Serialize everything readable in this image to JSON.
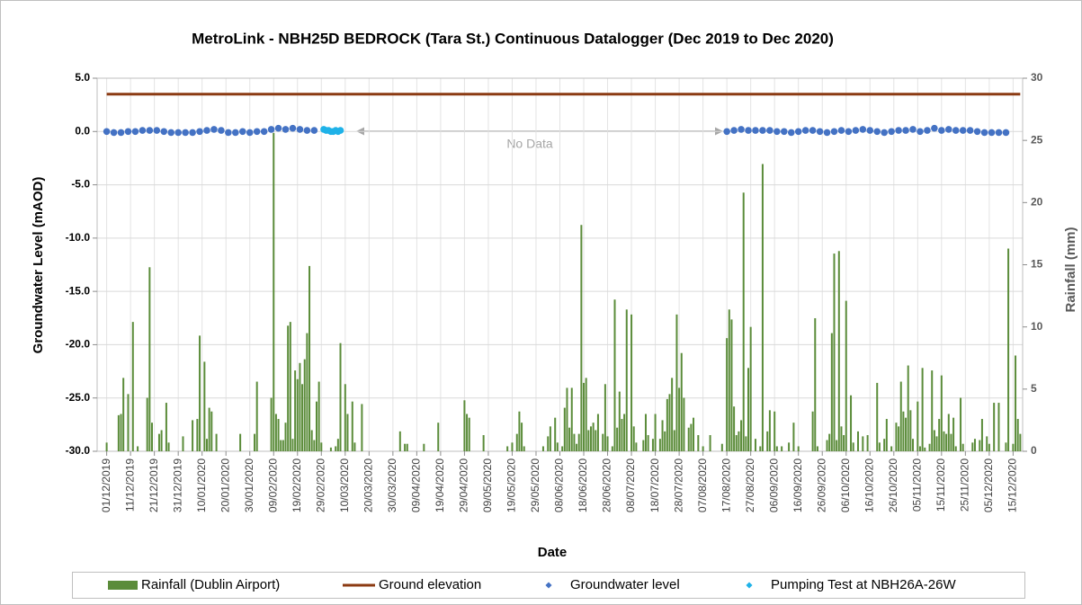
{
  "chart_data": {
    "type": "combo",
    "title": "MetroLink - NBH25D BEDROCK (Tara St.) Continuous Datalogger (Dec 2019 to Dec 2020)",
    "x_label": "Date",
    "y_label": "Groundwater Level (mAOD)",
    "y2_label": "Rainfall (mm)",
    "annotation": "No Data",
    "xlim": [
      "27/11/2019",
      "19/12/2020"
    ],
    "xticks": [
      "01/12/2019",
      "11/12/2019",
      "21/12/2019",
      "31/12/2019",
      "10/01/2020",
      "20/01/2020",
      "30/01/2020",
      "09/02/2020",
      "19/02/2020",
      "29/02/2020",
      "10/03/2020",
      "20/03/2020",
      "30/03/2020",
      "09/04/2020",
      "19/04/2020",
      "29/04/2020",
      "09/05/2020",
      "19/05/2020",
      "29/05/2020",
      "08/06/2020",
      "18/06/2020",
      "28/06/2020",
      "08/07/2020",
      "18/07/2020",
      "28/07/2020",
      "07/08/2020",
      "17/08/2020",
      "27/08/2020",
      "06/09/2020",
      "16/09/2020",
      "26/09/2020",
      "06/10/2020",
      "16/10/2020",
      "26/10/2020",
      "05/11/2020",
      "15/11/2020",
      "25/11/2020",
      "05/12/2020",
      "15/12/2020"
    ],
    "ylim": [
      -30,
      5
    ],
    "yticks": [
      {
        "value": -30,
        "label": "-30.0"
      },
      {
        "value": -25,
        "label": "-25.0"
      },
      {
        "value": -20,
        "label": "-20.0"
      },
      {
        "value": -15,
        "label": "-15.0"
      },
      {
        "value": -10,
        "label": "-10.0"
      },
      {
        "value": -5,
        "label": "-5.0"
      },
      {
        "value": 0,
        "label": "0.0"
      },
      {
        "value": 5,
        "label": "5.0"
      }
    ],
    "y2lim": [
      0,
      30
    ],
    "y2ticks": [
      0,
      5,
      10,
      15,
      20,
      25,
      30
    ],
    "grid": true,
    "legend": "bottom",
    "series": [
      {
        "name": "Rainfall (Dublin Airport)",
        "type": "bar",
        "axis": "y2",
        "color": "#5b8c3a",
        "x": [
          "01/12/2019",
          "06/12/2019",
          "07/12/2019",
          "08/12/2019",
          "10/12/2019",
          "12/12/2019",
          "14/12/2019",
          "18/12/2019",
          "19/12/2019",
          "20/12/2019",
          "23/12/2019",
          "24/12/2019",
          "26/12/2019",
          "27/12/2019",
          "02/01/2020",
          "06/01/2020",
          "08/01/2020",
          "09/01/2020",
          "11/01/2020",
          "12/01/2020",
          "13/01/2020",
          "14/01/2020",
          "16/01/2020",
          "26/01/2020",
          "01/02/2020",
          "02/02/2020",
          "08/02/2020",
          "09/02/2020",
          "10/02/2020",
          "11/02/2020",
          "12/02/2020",
          "13/02/2020",
          "14/02/2020",
          "15/02/2020",
          "16/02/2020",
          "17/02/2020",
          "18/02/2020",
          "19/02/2020",
          "20/02/2020",
          "21/02/2020",
          "22/02/2020",
          "23/02/2020",
          "24/02/2020",
          "25/02/2020",
          "26/02/2020",
          "27/02/2020",
          "28/02/2020",
          "29/02/2020",
          "04/03/2020",
          "06/03/2020",
          "07/03/2020",
          "08/03/2020",
          "10/03/2020",
          "11/03/2020",
          "13/03/2020",
          "14/03/2020",
          "17/03/2020",
          "02/04/2020",
          "04/04/2020",
          "05/04/2020",
          "12/04/2020",
          "18/04/2020",
          "29/04/2020",
          "30/04/2020",
          "01/05/2020",
          "07/05/2020",
          "17/05/2020",
          "19/05/2020",
          "21/05/2020",
          "22/05/2020",
          "23/05/2020",
          "24/05/2020",
          "01/06/2020",
          "03/06/2020",
          "04/06/2020",
          "06/06/2020",
          "07/06/2020",
          "09/06/2020",
          "10/06/2020",
          "11/06/2020",
          "12/06/2020",
          "13/06/2020",
          "14/06/2020",
          "15/06/2020",
          "16/06/2020",
          "17/06/2020",
          "18/06/2020",
          "19/06/2020",
          "20/06/2020",
          "21/06/2020",
          "22/06/2020",
          "23/06/2020",
          "24/06/2020",
          "26/06/2020",
          "27/06/2020",
          "28/06/2020",
          "30/06/2020",
          "01/07/2020",
          "02/07/2020",
          "03/07/2020",
          "04/07/2020",
          "05/07/2020",
          "06/07/2020",
          "08/07/2020",
          "09/07/2020",
          "10/07/2020",
          "13/07/2020",
          "14/07/2020",
          "15/07/2020",
          "17/07/2020",
          "18/07/2020",
          "20/07/2020",
          "21/07/2020",
          "22/07/2020",
          "23/07/2020",
          "24/07/2020",
          "25/07/2020",
          "26/07/2020",
          "27/07/2020",
          "28/07/2020",
          "29/07/2020",
          "30/07/2020",
          "01/08/2020",
          "02/08/2020",
          "03/08/2020",
          "05/08/2020",
          "07/08/2020",
          "10/08/2020",
          "15/08/2020",
          "17/08/2020",
          "18/08/2020",
          "19/08/2020",
          "20/08/2020",
          "21/08/2020",
          "22/08/2020",
          "23/08/2020",
          "24/08/2020",
          "25/08/2020",
          "26/08/2020",
          "27/08/2020",
          "29/08/2020",
          "31/08/2020",
          "01/09/2020",
          "03/09/2020",
          "04/09/2020",
          "06/09/2020",
          "07/09/2020",
          "09/09/2020",
          "12/09/2020",
          "14/09/2020",
          "16/09/2020",
          "22/09/2020",
          "23/09/2020",
          "24/09/2020",
          "28/09/2020",
          "29/09/2020",
          "30/09/2020",
          "01/10/2020",
          "02/10/2020",
          "03/10/2020",
          "04/10/2020",
          "05/10/2020",
          "06/10/2020",
          "08/10/2020",
          "09/10/2020",
          "11/10/2020",
          "13/10/2020",
          "15/10/2020",
          "19/10/2020",
          "20/10/2020",
          "22/10/2020",
          "23/10/2020",
          "25/10/2020",
          "27/10/2020",
          "28/10/2020",
          "29/10/2020",
          "30/10/2020",
          "31/10/2020",
          "01/11/2020",
          "02/11/2020",
          "03/11/2020",
          "05/11/2020",
          "06/11/2020",
          "07/11/2020",
          "08/11/2020",
          "10/11/2020",
          "11/11/2020",
          "12/11/2020",
          "13/11/2020",
          "14/11/2020",
          "15/11/2020",
          "16/11/2020",
          "17/11/2020",
          "18/11/2020",
          "19/11/2020",
          "20/11/2020",
          "21/11/2020",
          "23/11/2020",
          "24/11/2020",
          "28/11/2020",
          "29/11/2020",
          "01/12/2020",
          "02/12/2020",
          "04/12/2020",
          "05/12/2020",
          "07/12/2020",
          "09/12/2020",
          "12/12/2020",
          "13/12/2020",
          "15/12/2020",
          "16/12/2020",
          "17/12/2020",
          "18/12/2020"
        ],
        "values": [
          0.7,
          2.9,
          3.0,
          5.9,
          4.6,
          10.4,
          0.4,
          4.3,
          14.8,
          2.3,
          1.4,
          1.7,
          3.9,
          0.7,
          1.2,
          2.5,
          2.6,
          9.3,
          7.2,
          1.0,
          3.5,
          3.2,
          1.4,
          1.4,
          1.4,
          5.6,
          4.3,
          25.6,
          3.0,
          2.6,
          0.9,
          0.9,
          2.3,
          10.1,
          10.4,
          1.0,
          6.5,
          5.8,
          7.1,
          5.4,
          7.4,
          9.5,
          14.9,
          1.7,
          0.9,
          4.0,
          5.6,
          0.7,
          0.3,
          0.4,
          1.0,
          8.7,
          5.4,
          3.0,
          4.0,
          0.7,
          3.8,
          1.6,
          0.6,
          0.6,
          0.6,
          2.3,
          4.1,
          3.0,
          2.7,
          1.3,
          0.4,
          0.7,
          1.4,
          3.2,
          2.3,
          0.4,
          0.4,
          1.2,
          2.0,
          2.7,
          0.7,
          0.4,
          3.5,
          5.1,
          1.9,
          5.1,
          1.4,
          0.6,
          1.4,
          18.2,
          5.5,
          5.9,
          1.7,
          2.0,
          2.3,
          1.7,
          3.0,
          1.4,
          5.4,
          1.2,
          0.4,
          12.2,
          1.9,
          4.8,
          2.6,
          3.0,
          11.4,
          11.0,
          2.0,
          0.7,
          0.9,
          3.0,
          1.3,
          1.0,
          3.0,
          1.0,
          2.5,
          1.6,
          4.2,
          4.6,
          5.9,
          1.7,
          11.0,
          5.1,
          7.9,
          4.3,
          1.9,
          2.2,
          2.7,
          1.3,
          0.4,
          1.3,
          0.6,
          9.1,
          11.4,
          10.6,
          3.6,
          1.3,
          1.6,
          2.5,
          20.8,
          1.2,
          6.7,
          10.0,
          1.0,
          0.4,
          23.1,
          1.6,
          3.3,
          3.2,
          0.4,
          0.4,
          0.7,
          2.3,
          0.4,
          3.2,
          10.7,
          0.4,
          0.9,
          1.4,
          9.5,
          15.9,
          0.9,
          16.1,
          2.0,
          1.3,
          12.1,
          4.5,
          0.7,
          1.6,
          1.2,
          1.3,
          5.5,
          0.7,
          1.0,
          2.6,
          0.4,
          2.3,
          2.0,
          5.6,
          3.2,
          2.7,
          6.9,
          3.3,
          1.0,
          4.0,
          0.4,
          6.7,
          0.3,
          0.6,
          6.5,
          1.7,
          1.2,
          2.6,
          6.1,
          1.6,
          1.4,
          3.0,
          1.4,
          2.7,
          0.4,
          4.3,
          0.6,
          0.7,
          1.0,
          0.9,
          2.6,
          1.2,
          0.6,
          3.9,
          3.9,
          0.7,
          16.3,
          0.6,
          7.7,
          2.6,
          1.4
        ]
      },
      {
        "name": "Ground elevation",
        "type": "line",
        "color": "#8b3a12",
        "x": [
          "01/12/2019",
          "18/12/2020"
        ],
        "values": [
          3.5,
          3.5
        ]
      },
      {
        "name": "Groundwater level",
        "type": "scatter",
        "color": "#4472c4",
        "x": [
          "01/12/2019",
          "04/12/2019",
          "07/12/2019",
          "10/12/2019",
          "13/12/2019",
          "16/12/2019",
          "19/12/2019",
          "22/12/2019",
          "25/12/2019",
          "28/12/2019",
          "31/12/2019",
          "03/01/2020",
          "06/01/2020",
          "09/01/2020",
          "12/01/2020",
          "15/01/2020",
          "18/01/2020",
          "21/01/2020",
          "24/01/2020",
          "27/01/2020",
          "30/01/2020",
          "02/02/2020",
          "05/02/2020",
          "08/02/2020",
          "11/02/2020",
          "14/02/2020",
          "17/02/2020",
          "20/02/2020",
          "23/02/2020",
          "26/02/2020",
          "17/08/2020",
          "20/08/2020",
          "23/08/2020",
          "26/08/2020",
          "29/08/2020",
          "01/09/2020",
          "04/09/2020",
          "07/09/2020",
          "10/09/2020",
          "13/09/2020",
          "16/09/2020",
          "19/09/2020",
          "22/09/2020",
          "25/09/2020",
          "28/09/2020",
          "01/10/2020",
          "04/10/2020",
          "07/10/2020",
          "10/10/2020",
          "13/10/2020",
          "16/10/2020",
          "19/10/2020",
          "22/10/2020",
          "25/10/2020",
          "28/10/2020",
          "31/10/2020",
          "03/11/2020",
          "06/11/2020",
          "09/11/2020",
          "12/11/2020",
          "15/11/2020",
          "18/11/2020",
          "21/11/2020",
          "24/11/2020",
          "27/11/2020",
          "30/11/2020",
          "03/12/2020",
          "06/12/2020",
          "09/12/2020",
          "12/12/2020"
        ],
        "values": [
          0.0,
          -0.1,
          -0.1,
          0.0,
          0.0,
          0.1,
          0.1,
          0.1,
          0.0,
          -0.1,
          -0.1,
          -0.1,
          -0.1,
          0.0,
          0.1,
          0.2,
          0.1,
          -0.1,
          -0.1,
          0.0,
          -0.1,
          0.0,
          0.0,
          0.2,
          0.3,
          0.2,
          0.3,
          0.2,
          0.1,
          0.1,
          0.0,
          0.1,
          0.2,
          0.1,
          0.1,
          0.1,
          0.1,
          0.0,
          0.0,
          -0.1,
          0.0,
          0.1,
          0.1,
          0.0,
          -0.1,
          0.0,
          0.1,
          0.0,
          0.1,
          0.2,
          0.1,
          0.0,
          -0.1,
          0.0,
          0.1,
          0.1,
          0.2,
          0.0,
          0.1,
          0.3,
          0.1,
          0.2,
          0.1,
          0.1,
          0.1,
          0.0,
          -0.1,
          -0.1,
          -0.1,
          -0.1
        ]
      },
      {
        "name": "Pumping Test at NBH26A-26W",
        "type": "scatter",
        "color": "#1fb2e8",
        "x": [
          "01/03/2020",
          "02/03/2020",
          "03/03/2020",
          "04/03/2020",
          "05/03/2020",
          "06/03/2020",
          "07/03/2020",
          "08/03/2020"
        ],
        "values": [
          0.2,
          0.1,
          0.1,
          0.0,
          0.0,
          0.1,
          0.0,
          0.1
        ]
      }
    ]
  }
}
